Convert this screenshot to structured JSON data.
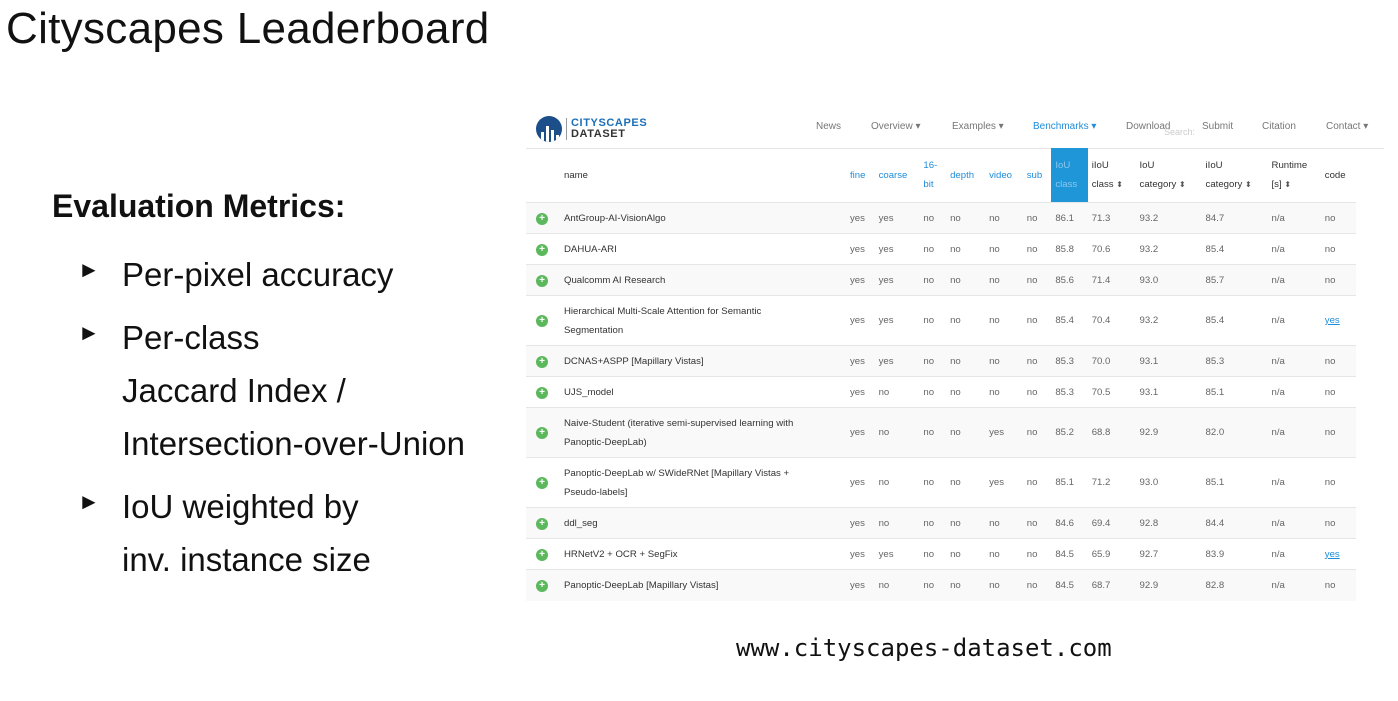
{
  "slide": {
    "title": "Cityscapes Leaderboard",
    "metrics_heading": "Evaluation Metrics:",
    "bullets": [
      {
        "lines": [
          "Per-pixel accuracy"
        ]
      },
      {
        "lines": [
          "Per-class",
          "Jaccard Index /",
          "Intersection-over-Union"
        ]
      },
      {
        "lines": [
          "IoU weighted by",
          "inv. instance size"
        ]
      }
    ],
    "bullet_glyph": "►",
    "url": "www.cityscapes-dataset.com"
  },
  "nav": {
    "logo_line1": "CITYSCAPES",
    "logo_line2": "DATASET",
    "items": [
      "News",
      "Overview ▾",
      "Examples ▾",
      "Benchmarks ▾",
      "Download",
      "Submit",
      "Citation",
      "Contact ▾"
    ],
    "active_index": 3,
    "search_placeholder": "Search:"
  },
  "table": {
    "headers": {
      "name": "name",
      "fine": "fine",
      "coarse": "coarse",
      "bit_l1": "16-",
      "bit_l2": "bit",
      "depth": "depth",
      "video": "video",
      "sub": "sub",
      "iou_class_l1": "IoU",
      "iou_class_l2": "class",
      "iiou_class_l1": "iIoU",
      "iiou_class_l2": "class",
      "iou_cat_l1": "IoU",
      "iou_cat_l2": "category",
      "iiou_cat_l1": "iIoU",
      "iiou_cat_l2": "category",
      "runtime_l1": "Runtime",
      "runtime_l2": "[s]",
      "code": "code"
    },
    "rows": [
      {
        "name": [
          "AntGroup-AI-VisionAlgo"
        ],
        "fine": "yes",
        "coarse": "yes",
        "bit": "no",
        "depth": "no",
        "video": "no",
        "sub": "no",
        "iou_class": "86.1",
        "iiou_class": "71.3",
        "iou_cat": "93.2",
        "iiou_cat": "84.7",
        "runtime": "n/a",
        "code": "no",
        "code_link": false
      },
      {
        "name": [
          "DAHUA-ARI"
        ],
        "fine": "yes",
        "coarse": "yes",
        "bit": "no",
        "depth": "no",
        "video": "no",
        "sub": "no",
        "iou_class": "85.8",
        "iiou_class": "70.6",
        "iou_cat": "93.2",
        "iiou_cat": "85.4",
        "runtime": "n/a",
        "code": "no",
        "code_link": false
      },
      {
        "name": [
          "Qualcomm AI Research"
        ],
        "fine": "yes",
        "coarse": "yes",
        "bit": "no",
        "depth": "no",
        "video": "no",
        "sub": "no",
        "iou_class": "85.6",
        "iiou_class": "71.4",
        "iou_cat": "93.0",
        "iiou_cat": "85.7",
        "runtime": "n/a",
        "code": "no",
        "code_link": false
      },
      {
        "name": [
          "Hierarchical Multi-Scale Attention for Semantic",
          "Segmentation"
        ],
        "fine": "yes",
        "coarse": "yes",
        "bit": "no",
        "depth": "no",
        "video": "no",
        "sub": "no",
        "iou_class": "85.4",
        "iiou_class": "70.4",
        "iou_cat": "93.2",
        "iiou_cat": "85.4",
        "runtime": "n/a",
        "code": "yes",
        "code_link": true
      },
      {
        "name": [
          "DCNAS+ASPP [Mapillary Vistas]"
        ],
        "fine": "yes",
        "coarse": "yes",
        "bit": "no",
        "depth": "no",
        "video": "no",
        "sub": "no",
        "iou_class": "85.3",
        "iiou_class": "70.0",
        "iou_cat": "93.1",
        "iiou_cat": "85.3",
        "runtime": "n/a",
        "code": "no",
        "code_link": false
      },
      {
        "name": [
          "UJS_model"
        ],
        "fine": "yes",
        "coarse": "no",
        "bit": "no",
        "depth": "no",
        "video": "no",
        "sub": "no",
        "iou_class": "85.3",
        "iiou_class": "70.5",
        "iou_cat": "93.1",
        "iiou_cat": "85.1",
        "runtime": "n/a",
        "code": "no",
        "code_link": false
      },
      {
        "name": [
          "Naive-Student (iterative semi-supervised learning with",
          "Panoptic-DeepLab)"
        ],
        "fine": "yes",
        "coarse": "no",
        "bit": "no",
        "depth": "no",
        "video": "yes",
        "sub": "no",
        "iou_class": "85.2",
        "iiou_class": "68.8",
        "iou_cat": "92.9",
        "iiou_cat": "82.0",
        "runtime": "n/a",
        "code": "no",
        "code_link": false
      },
      {
        "name": [
          "Panoptic-DeepLab w/ SWideRNet [Mapillary Vistas +",
          "Pseudo-labels]"
        ],
        "fine": "yes",
        "coarse": "no",
        "bit": "no",
        "depth": "no",
        "video": "yes",
        "sub": "no",
        "iou_class": "85.1",
        "iiou_class": "71.2",
        "iou_cat": "93.0",
        "iiou_cat": "85.1",
        "runtime": "n/a",
        "code": "no",
        "code_link": false
      },
      {
        "name": [
          "ddl_seg"
        ],
        "fine": "yes",
        "coarse": "no",
        "bit": "no",
        "depth": "no",
        "video": "no",
        "sub": "no",
        "iou_class": "84.6",
        "iiou_class": "69.4",
        "iou_cat": "92.8",
        "iiou_cat": "84.4",
        "runtime": "n/a",
        "code": "no",
        "code_link": false
      },
      {
        "name": [
          "HRNetV2 + OCR + SegFix"
        ],
        "fine": "yes",
        "coarse": "yes",
        "bit": "no",
        "depth": "no",
        "video": "no",
        "sub": "no",
        "iou_class": "84.5",
        "iiou_class": "65.9",
        "iou_cat": "92.7",
        "iiou_cat": "83.9",
        "runtime": "n/a",
        "code": "yes",
        "code_link": true
      },
      {
        "name": [
          "Panoptic-DeepLab [Mapillary Vistas]"
        ],
        "fine": "yes",
        "coarse": "no",
        "bit": "no",
        "depth": "no",
        "video": "no",
        "sub": "no",
        "iou_class": "84.5",
        "iiou_class": "68.7",
        "iou_cat": "92.9",
        "iiou_cat": "82.8",
        "runtime": "n/a",
        "code": "no",
        "code_link": false
      }
    ]
  },
  "colors": {
    "accent": "#1f8ddb",
    "sorted_header": "#1f96d8",
    "expand_icon": "#5cb85c",
    "logo_blue": "#1c4e8a"
  }
}
